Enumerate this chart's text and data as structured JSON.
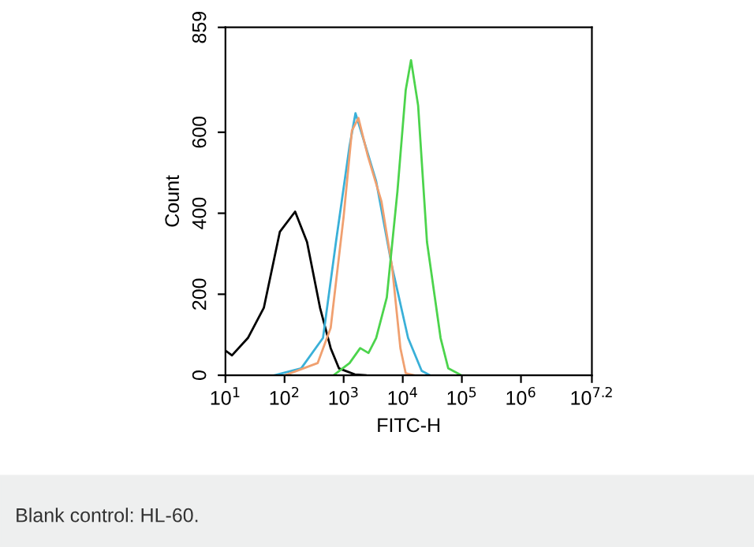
{
  "chart_data": {
    "type": "line",
    "xlabel": "FITC-H",
    "ylabel": "Count",
    "log": "x",
    "xlim": [
      10,
      15848931.92
    ],
    "xticks": [
      {
        "value": 10,
        "label": "10$^{1}$"
      },
      {
        "value": 100,
        "label": "10$^{2}$"
      },
      {
        "value": 1000,
        "label": "10$^{3}$"
      },
      {
        "value": 10000,
        "label": "10$^{4}$"
      },
      {
        "value": 100000,
        "label": "10$^{5}$"
      },
      {
        "value": 1000000,
        "label": "10$^{6}$"
      },
      {
        "value": 15848931.92,
        "label": "10$^{7.2}$"
      }
    ],
    "ylim": [
      0,
      859
    ],
    "yticks": [
      0,
      200,
      400,
      600,
      859
    ],
    "grid": false,
    "legend": false,
    "marker": "none",
    "line_style": "solid",
    "annotations": [
      "Blank control: HL-60."
    ],
    "series": [
      {
        "color": "#000000",
        "x": [
          10,
          12.9,
          24,
          44.7,
          83.2,
          151,
          240,
          398,
          603,
          832,
          1549,
          2344
        ],
        "values": [
          61,
          49,
          92,
          167,
          354,
          404,
          329,
          167,
          67,
          17,
          2,
          0
        ]
      },
      {
        "color": "#3ab0d8",
        "x": [
          67.6,
          191,
          447,
          741,
          1259,
          1585,
          2344,
          3548,
          6607,
          12303,
          20893,
          28840
        ],
        "values": [
          0,
          17,
          92,
          329,
          566,
          647,
          566,
          479,
          267,
          92,
          11,
          0
        ]
      },
      {
        "color": "#f0a070",
        "x": [
          102,
          363,
          603,
          1000,
          1380,
          1778,
          2570,
          4365,
          6607,
          9120,
          11220,
          15488
        ],
        "values": [
          0,
          30,
          117,
          392,
          604,
          635,
          541,
          429,
          267,
          67,
          5,
          0
        ]
      },
      {
        "color": "#4cd44c",
        "x": [
          676,
          1259,
          1905,
          2630,
          3548,
          5370,
          8128,
          11220,
          13804,
          18197,
          25704,
          43652,
          58884,
          97724
        ],
        "values": [
          0,
          30,
          67,
          55,
          92,
          192,
          454,
          704,
          778,
          666,
          329,
          92,
          17,
          0
        ]
      }
    ]
  }
}
